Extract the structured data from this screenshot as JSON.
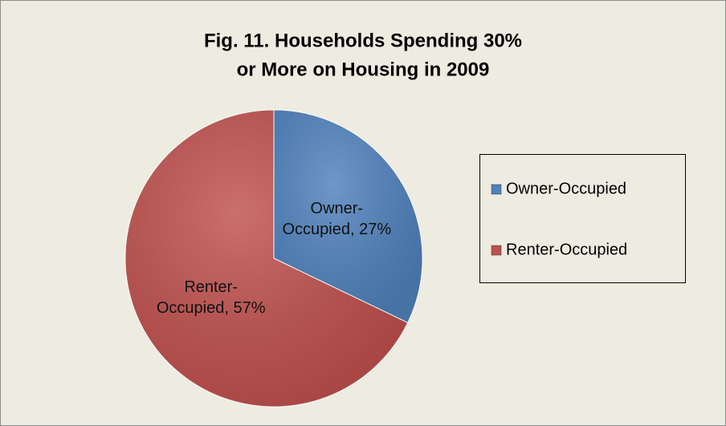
{
  "chart_data": {
    "type": "pie",
    "title": [
      "Fig. 11. Households Spending 30%",
      "or More on Housing in 2009"
    ],
    "categories": [
      "Owner-Occupied",
      "Renter-Occupied"
    ],
    "values": [
      27,
      57
    ],
    "value_labels": [
      "Owner-Occupied, 27%",
      "Renter-Occupied, 57%"
    ],
    "colors": [
      "#4f81bd",
      "#c0504d"
    ],
    "legend": "right"
  }
}
